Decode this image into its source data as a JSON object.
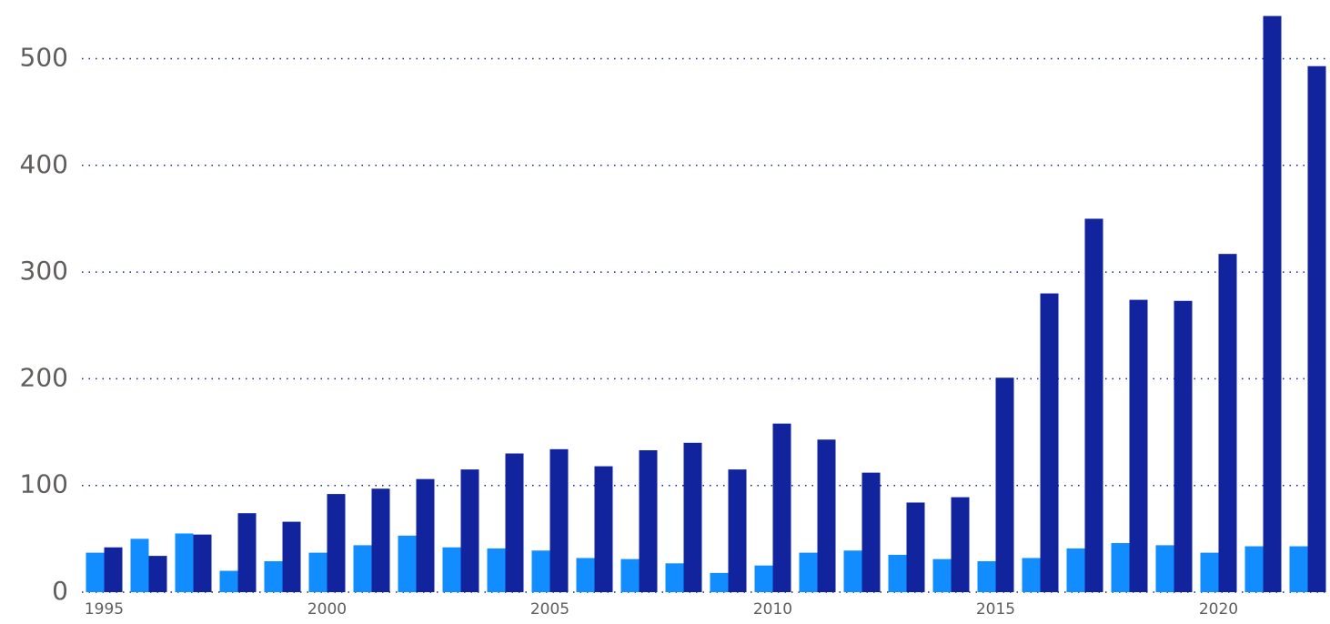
{
  "chart_data": {
    "type": "bar",
    "categories": [
      "1995",
      null,
      null,
      null,
      null,
      "2000",
      null,
      null,
      null,
      null,
      "2005",
      null,
      null,
      null,
      null,
      "2010",
      null,
      null,
      null,
      null,
      "2015",
      null,
      null,
      null,
      null,
      "2020",
      null,
      null
    ],
    "series": [
      {
        "color": "#118dff",
        "values": [
          37,
          50,
          55,
          20,
          29,
          37,
          44,
          53,
          42,
          41,
          39,
          32,
          31,
          27,
          18,
          25,
          37,
          39,
          35,
          31,
          29,
          32,
          41,
          46,
          44,
          37,
          43,
          43
        ]
      },
      {
        "color": "#12239e",
        "values": [
          42,
          34,
          54,
          74,
          66,
          92,
          97,
          106,
          115,
          130,
          134,
          118,
          133,
          140,
          115,
          158,
          143,
          112,
          84,
          89,
          201,
          280,
          350,
          274,
          273,
          317,
          540,
          493
        ]
      }
    ],
    "ylim": [
      0,
      555
    ],
    "yticks": [
      0,
      100,
      200,
      300,
      400,
      500
    ],
    "grid": true
  }
}
